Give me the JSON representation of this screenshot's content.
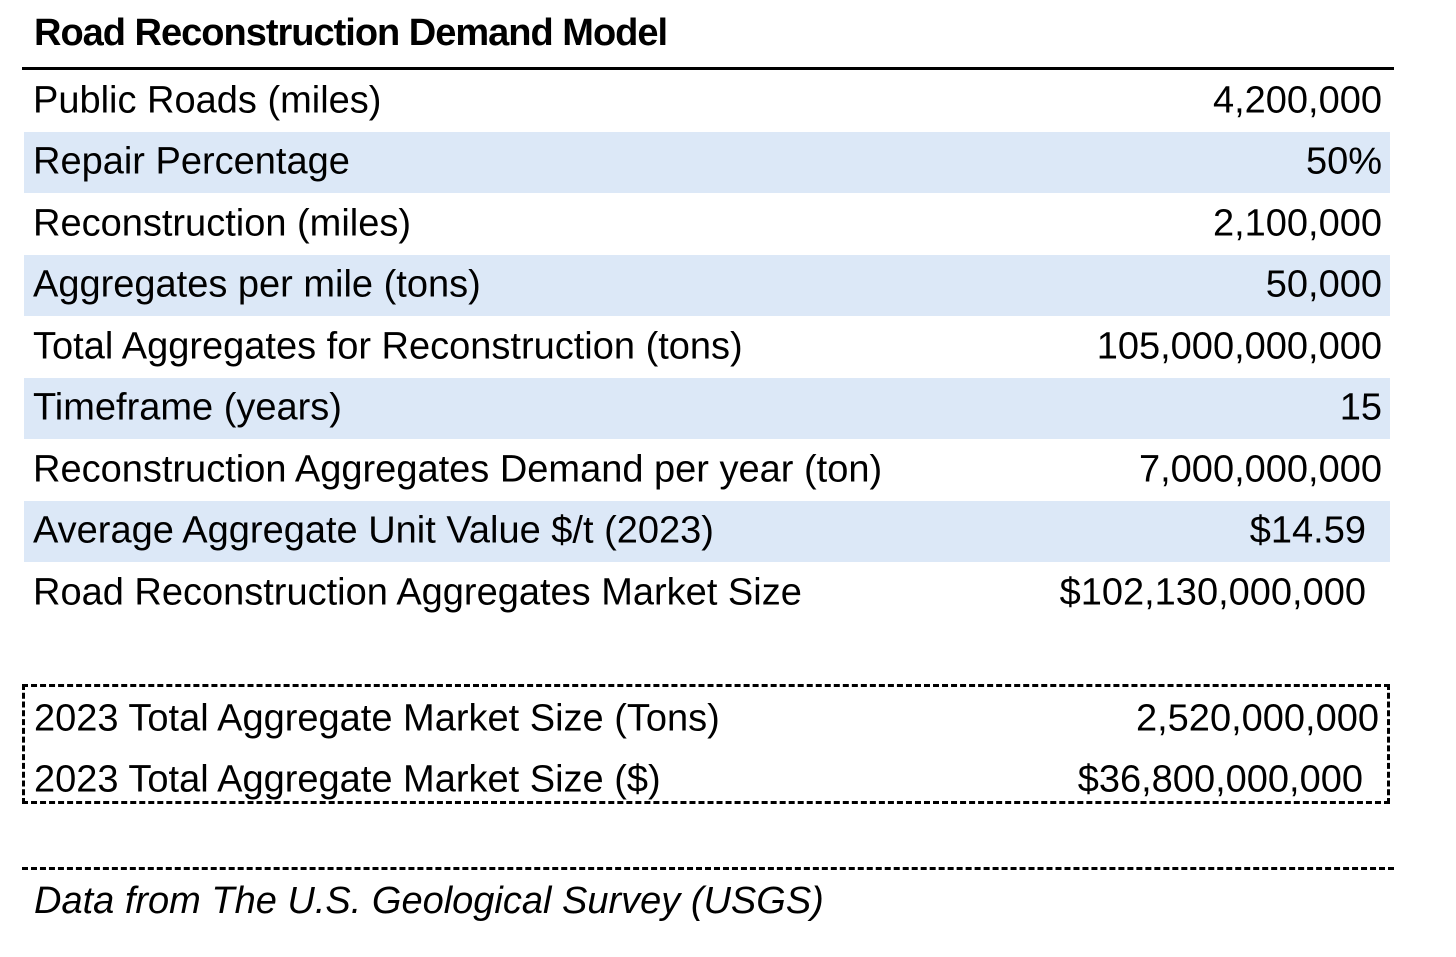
{
  "title": "Road Reconstruction Demand Model",
  "rows": [
    {
      "label": "Public Roads (miles)",
      "value": "4,200,000"
    },
    {
      "label": "Repair Percentage",
      "value": "50%"
    },
    {
      "label": "Reconstruction (miles)",
      "value": "2,100,000"
    },
    {
      "label": "Aggregates per mile (tons)",
      "value": "50,000"
    },
    {
      "label": "Total Aggregates for Reconstruction (tons)",
      "value": "105,000,000,000"
    },
    {
      "label": "Timeframe (years)",
      "value": "15"
    },
    {
      "label": "Reconstruction Aggregates Demand per year (ton)",
      "value": "7,000,000,000"
    },
    {
      "label": "Average Aggregate Unit Value $/t (2023)",
      "value": "$14.59"
    },
    {
      "label": "Road Reconstruction Aggregates Market Size",
      "value": "$102,130,000,000"
    }
  ],
  "market": [
    {
      "label": "2023 Total Aggregate Market Size (Tons)",
      "value": "2,520,000,000"
    },
    {
      "label": "2023 Total Aggregate Market Size ($)",
      "value": "$36,800,000,000"
    }
  ],
  "source": "Data from The U.S. Geological Survey (USGS)",
  "colors": {
    "row_shading": "#dce8f7",
    "text": "#000000",
    "background": "#ffffff"
  }
}
